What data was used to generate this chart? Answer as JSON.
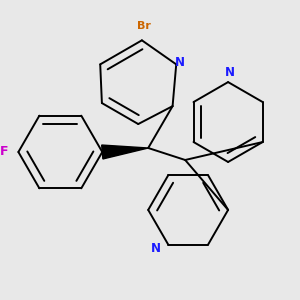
{
  "bg_color": "#e8e8e8",
  "bond_color": "#000000",
  "N_color": "#1a1aff",
  "F_color": "#cc00cc",
  "Br_color": "#cc6600",
  "line_width": 1.4,
  "figsize": [
    3.0,
    3.0
  ],
  "dpi": 100,
  "xlim": [
    0,
    300
  ],
  "ylim": [
    0,
    300
  ]
}
